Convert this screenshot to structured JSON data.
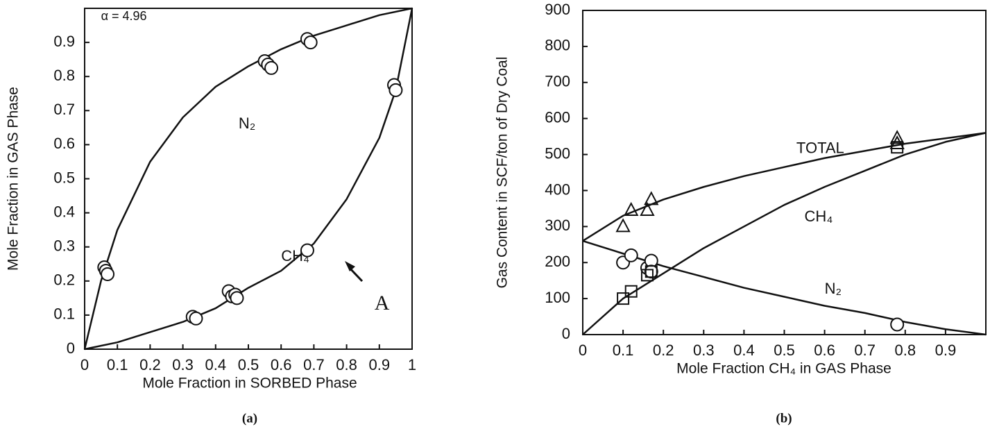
{
  "chart_data": [
    {
      "type": "line",
      "caption": "(a)",
      "x_label": "Mole Fraction in SORBED Phase",
      "y_label": "Mole Fraction in GAS Phase",
      "xlim": [
        0,
        1
      ],
      "ylim": [
        0,
        1
      ],
      "xticks": [
        0,
        0.1,
        0.2,
        0.3,
        0.4,
        0.5,
        0.6,
        0.7,
        0.8,
        0.9,
        1
      ],
      "yticks": [
        0,
        0.1,
        0.2,
        0.3,
        0.4,
        0.5,
        0.6,
        0.7,
        0.8,
        0.9
      ],
      "grid": false,
      "annotations": [
        {
          "text": "α = 4.96",
          "x": 0.05,
          "y": 0.975
        },
        {
          "text": "A",
          "x": 0.885,
          "y": 0.13
        }
      ],
      "series": [
        {
          "name": "N₂",
          "color": "#111",
          "label_at": [
            0.47,
            0.66
          ],
          "x": [
            0,
            0.05,
            0.1,
            0.2,
            0.3,
            0.4,
            0.5,
            0.6,
            0.7,
            0.8,
            0.9,
            1
          ],
          "values": [
            0,
            0.2,
            0.35,
            0.55,
            0.68,
            0.77,
            0.83,
            0.88,
            0.92,
            0.95,
            0.98,
            1
          ]
        },
        {
          "name": "CH₄",
          "color": "#111",
          "label_at": [
            0.6,
            0.27
          ],
          "x": [
            0,
            0.1,
            0.2,
            0.3,
            0.4,
            0.5,
            0.6,
            0.7,
            0.8,
            0.9,
            0.95,
            1
          ],
          "values": [
            0,
            0.02,
            0.05,
            0.08,
            0.12,
            0.18,
            0.23,
            0.31,
            0.44,
            0.62,
            0.76,
            1
          ]
        },
        {
          "marker": "circle",
          "color": "#111",
          "x": [
            0.06,
            0.065,
            0.07,
            0.33,
            0.34,
            0.44,
            0.45,
            0.46,
            0.465,
            0.55,
            0.56,
            0.57,
            0.68,
            0.69,
            0.945,
            0.95
          ],
          "values": [
            0.24,
            0.23,
            0.22,
            0.095,
            0.09,
            0.17,
            0.155,
            0.16,
            0.15,
            0.845,
            0.835,
            0.825,
            0.91,
            0.9,
            0.775,
            0.76
          ]
        },
        {
          "marker": "circle",
          "color": "#111",
          "x": [
            0.68
          ],
          "values": [
            0.29
          ]
        }
      ]
    },
    {
      "type": "line",
      "caption": "(b)",
      "x_label": "Mole Fraction CH₄ in GAS Phase",
      "y_label": "Gas Content in SCF/ton of Dry Coal",
      "xlim": [
        0,
        1
      ],
      "ylim": [
        0,
        900
      ],
      "xticks": [
        0,
        0.1,
        0.2,
        0.3,
        0.4,
        0.5,
        0.6,
        0.7,
        0.8,
        0.9
      ],
      "yticks": [
        0,
        100,
        200,
        300,
        400,
        500,
        600,
        700,
        800,
        900
      ],
      "grid": false,
      "annotations": [],
      "series": [
        {
          "name": "TOTAL",
          "color": "#111",
          "label_at": [
            0.53,
            515
          ],
          "x": [
            0,
            0.1,
            0.2,
            0.3,
            0.4,
            0.5,
            0.6,
            0.7,
            0.8,
            0.9,
            1
          ],
          "values": [
            260,
            330,
            375,
            410,
            440,
            465,
            490,
            510,
            530,
            545,
            560
          ]
        },
        {
          "name": "CH₄",
          "color": "#111",
          "label_at": [
            0.55,
            325
          ],
          "x": [
            0,
            0.1,
            0.2,
            0.3,
            0.4,
            0.5,
            0.6,
            0.7,
            0.8,
            0.9,
            1
          ],
          "values": [
            0,
            100,
            170,
            240,
            300,
            360,
            410,
            455,
            500,
            535,
            560
          ]
        },
        {
          "name": "N₂",
          "color": "#111",
          "label_at": [
            0.6,
            125
          ],
          "x": [
            0,
            0.1,
            0.2,
            0.3,
            0.4,
            0.5,
            0.6,
            0.7,
            0.8,
            0.9,
            1
          ],
          "values": [
            260,
            225,
            190,
            160,
            130,
            105,
            80,
            60,
            35,
            15,
            0
          ]
        },
        {
          "marker": "triangle",
          "color": "#111",
          "x": [
            0.1,
            0.12,
            0.16,
            0.17,
            0.78,
            0.78
          ],
          "values": [
            300,
            345,
            345,
            375,
            545,
            530
          ]
        },
        {
          "marker": "circle",
          "color": "#111",
          "x": [
            0.1,
            0.12,
            0.16,
            0.17,
            0.17,
            0.78
          ],
          "values": [
            200,
            220,
            185,
            205,
            175,
            28
          ]
        },
        {
          "marker": "square",
          "color": "#111",
          "x": [
            0.1,
            0.12,
            0.16,
            0.17,
            0.78
          ],
          "values": [
            100,
            120,
            165,
            175,
            520
          ]
        }
      ]
    }
  ]
}
